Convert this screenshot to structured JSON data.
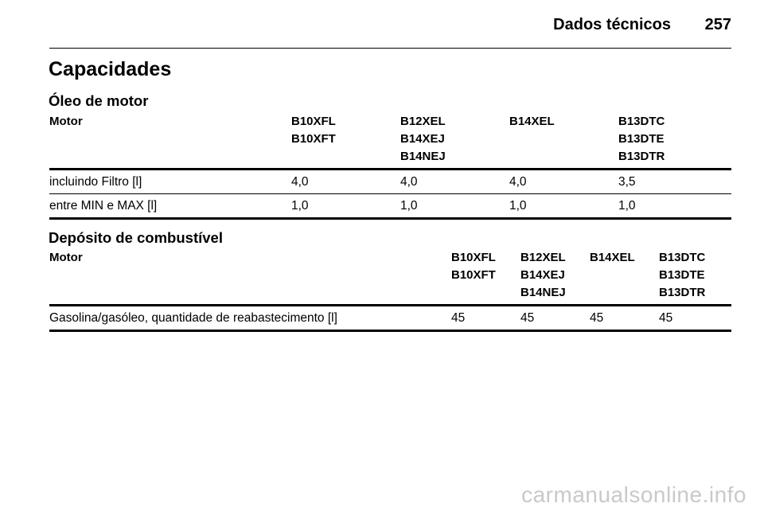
{
  "header": {
    "section": "Dados técnicos",
    "page": "257"
  },
  "title": "Capacidades",
  "oil": {
    "heading": "Óleo de motor",
    "columns": [
      {
        "label": "Motor",
        "lines": []
      },
      {
        "lines": [
          "B10XFL",
          "B10XFT"
        ]
      },
      {
        "lines": [
          "B12XEL",
          "B14XEJ",
          "B14NEJ"
        ]
      },
      {
        "lines": [
          "B14XEL"
        ]
      },
      {
        "lines": [
          "B13DTC",
          "B13DTE",
          "B13DTR"
        ]
      }
    ],
    "rows": [
      {
        "label": "incluindo Filtro [l]",
        "values": [
          "4,0",
          "4,0",
          "4,0",
          "3,5"
        ]
      },
      {
        "label": "entre MIN e MAX [l]",
        "values": [
          "1,0",
          "1,0",
          "1,0",
          "1,0"
        ]
      }
    ]
  },
  "fuel": {
    "heading": "Depósito de combustível",
    "columns": [
      {
        "label": "Motor",
        "lines": []
      },
      {
        "lines": [
          "B10XFL",
          "B10XFT"
        ]
      },
      {
        "lines": [
          "B12XEL",
          "B14XEJ",
          "B14NEJ"
        ]
      },
      {
        "lines": [
          "B14XEL"
        ]
      },
      {
        "lines": [
          "B13DTC",
          "B13DTE",
          "B13DTR"
        ]
      }
    ],
    "rows": [
      {
        "label": "Gasolina/gasóleo, quantidade de reabastecimento [l]",
        "values": [
          "45",
          "45",
          "45",
          "45"
        ]
      }
    ]
  },
  "watermark": "carmanualsonline.info"
}
